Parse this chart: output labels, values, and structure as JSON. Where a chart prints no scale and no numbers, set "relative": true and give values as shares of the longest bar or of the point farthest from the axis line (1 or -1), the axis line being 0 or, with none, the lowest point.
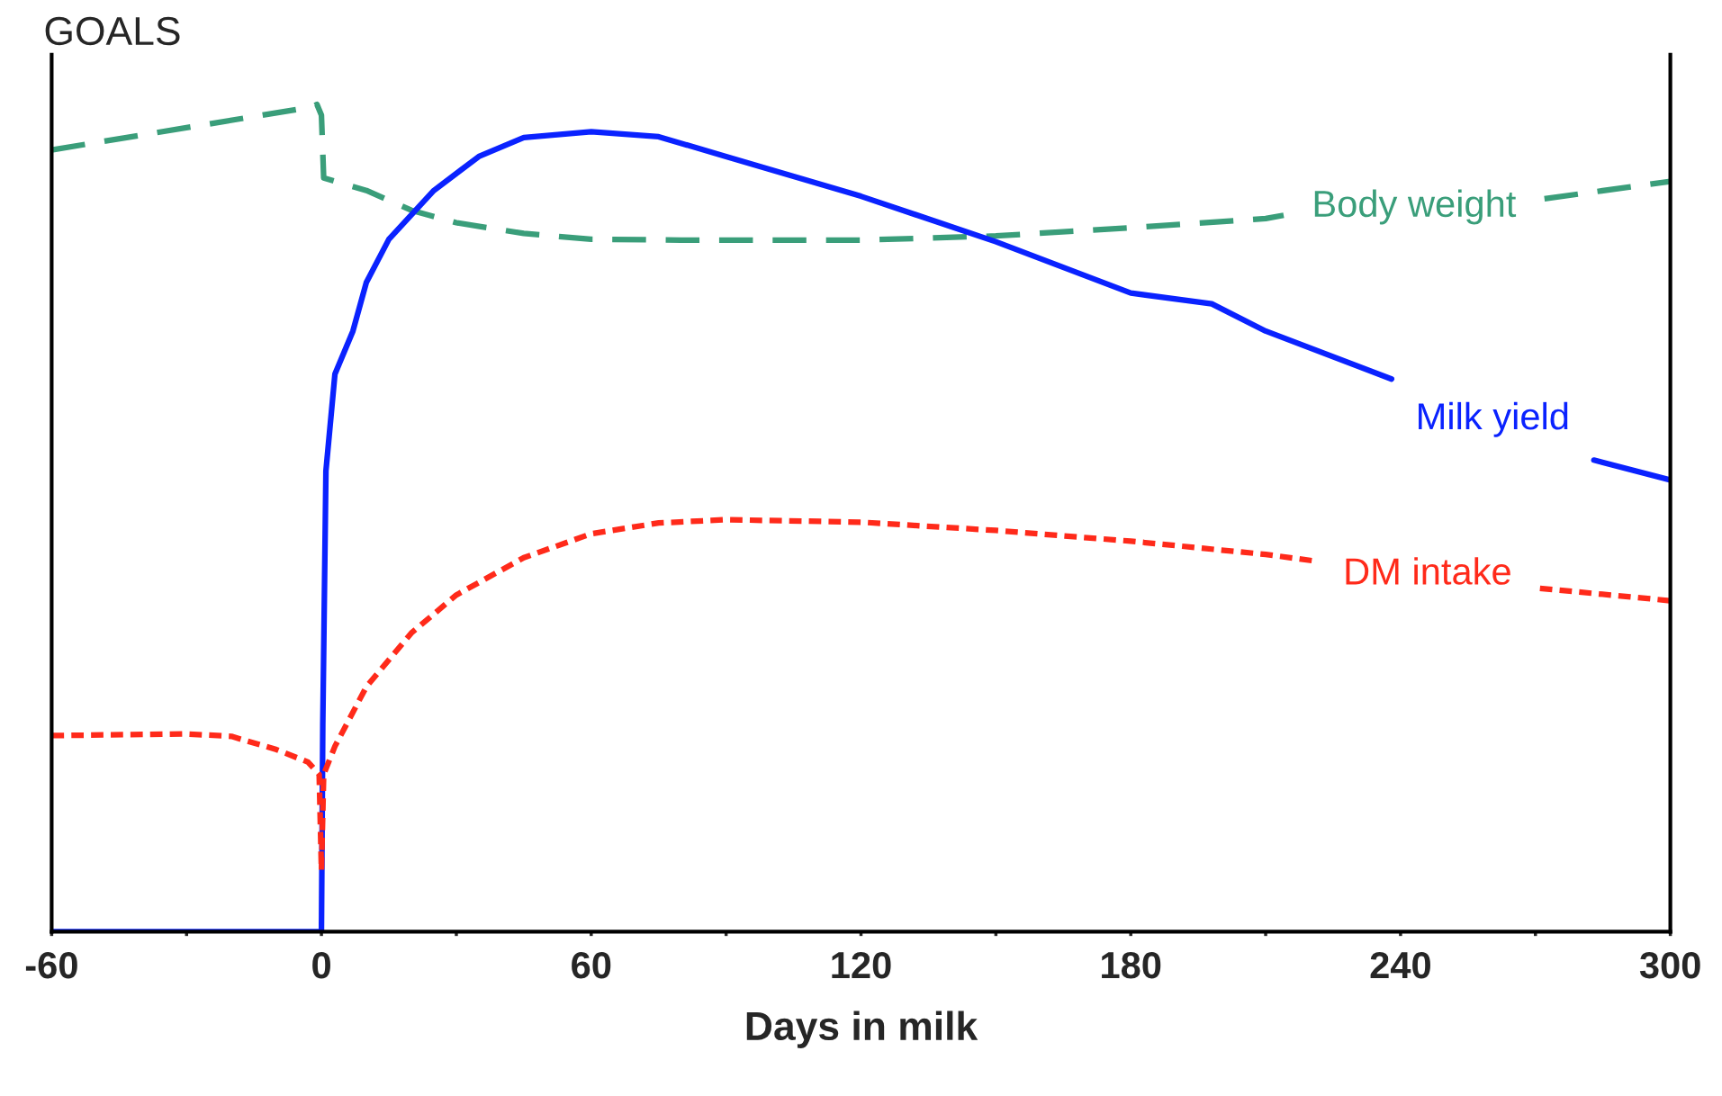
{
  "chart_data": {
    "type": "line",
    "title": "GOALS",
    "xlabel": "Days in milk",
    "relative": true,
    "legend": false,
    "grid": false,
    "marker": "none",
    "xlim": [
      -60,
      300
    ],
    "xticks": [
      -60,
      {
        "value": -30,
        "label": null
      },
      0,
      {
        "value": 30,
        "label": null
      },
      60,
      {
        "value": 90,
        "label": null
      },
      120,
      {
        "value": 150,
        "label": null
      },
      180,
      {
        "value": 210,
        "label": null
      },
      240,
      {
        "value": 270,
        "label": null
      },
      300
    ],
    "series": [
      {
        "name": "Body weight",
        "color": "#3a9e7a",
        "line_style": "dashed",
        "x": [
          -60,
          -2,
          -1,
          0,
          0.5,
          10,
          20,
          30,
          45,
          60,
          80,
          120,
          150,
          180,
          210,
          214,
          240,
          272,
          300
        ],
        "values": [
          0.945,
          0.997,
          1.0,
          0.987,
          0.911,
          0.896,
          0.872,
          0.857,
          0.844,
          0.837,
          0.836,
          0.836,
          0.841,
          0.851,
          0.862,
          0.866,
          null,
          0.886,
          0.907
        ]
      },
      {
        "name": "Milk yield",
        "color": "#0a22ff",
        "line_style": "solid",
        "x": [
          -60,
          0,
          0.3,
          1,
          3,
          7,
          10,
          15,
          25,
          35,
          45,
          60,
          75,
          90,
          120,
          150,
          180,
          198,
          210,
          238,
          240,
          283,
          300
        ],
        "values": [
          0,
          0,
          0.25,
          0.557,
          0.674,
          0.726,
          0.785,
          0.837,
          0.896,
          0.937,
          0.96,
          0.967,
          0.961,
          0.937,
          0.889,
          0.834,
          0.772,
          0.759,
          0.726,
          0.668,
          null,
          0.57,
          0.546
        ]
      },
      {
        "name": "DM intake",
        "color": "#ff2a1a",
        "line_style": "dotted",
        "x": [
          -60,
          -30,
          -20,
          -10,
          -3,
          -0.5,
          0,
          0.5,
          3,
          10,
          20,
          30,
          45,
          60,
          75,
          90,
          120,
          150,
          180,
          210,
          221,
          240,
          271,
          300
        ],
        "values": [
          0.237,
          0.239,
          0.236,
          0.22,
          0.205,
          0.19,
          0.074,
          0.19,
          0.224,
          0.296,
          0.361,
          0.407,
          0.452,
          0.481,
          0.494,
          0.498,
          0.495,
          0.485,
          0.472,
          0.456,
          0.448,
          null,
          0.415,
          0.4
        ]
      }
    ]
  }
}
